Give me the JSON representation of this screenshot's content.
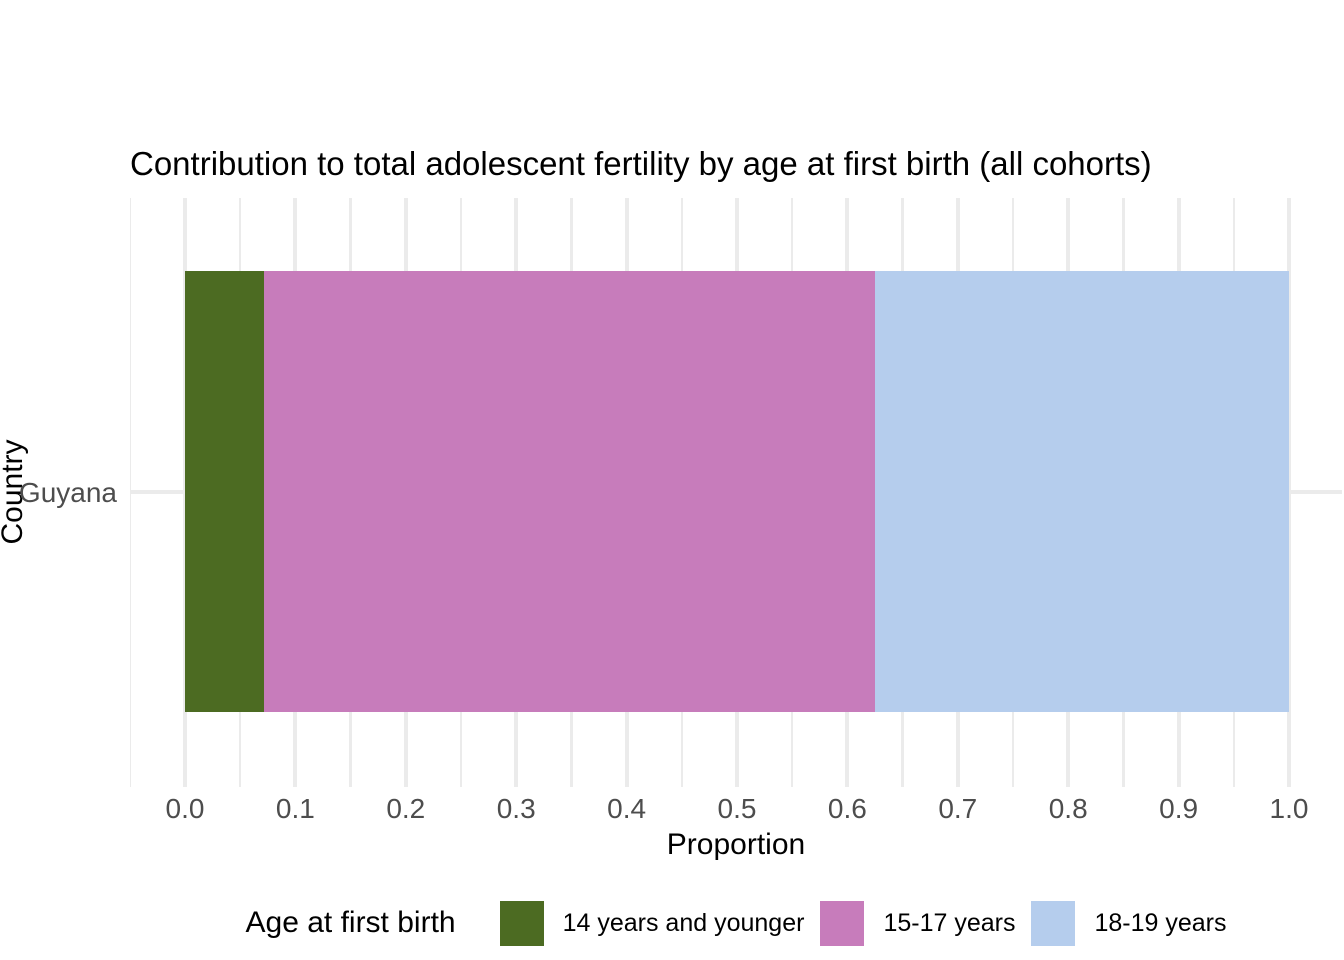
{
  "title": "Contribution to total adolescent fertility by age at first birth (all cohorts)",
  "axes": {
    "x_title": "Proportion",
    "y_title": "Country",
    "y_categories": [
      "Guyana"
    ]
  },
  "legend": {
    "title": "Age at first birth",
    "items": [
      {
        "label": "14 years and younger",
        "color": "#4C6B22"
      },
      {
        "label": "15-17 years",
        "color": "#C77CBB"
      },
      {
        "label": "18-19 years",
        "color": "#B5CDED"
      }
    ]
  },
  "chart_data": {
    "type": "bar",
    "orientation": "horizontal",
    "stacked": true,
    "title": "Contribution to total adolescent fertility by age at first birth (all cohorts)",
    "xlabel": "Proportion",
    "ylabel": "Country",
    "categories": [
      "Guyana"
    ],
    "series": [
      {
        "name": "14 years and younger",
        "color": "#4C6B22",
        "values": [
          0.072
        ]
      },
      {
        "name": "15-17 years",
        "color": "#C77CBB",
        "values": [
          0.553
        ]
      },
      {
        "name": "18-19 years",
        "color": "#B5CDED",
        "values": [
          0.375
        ]
      }
    ],
    "xlim": [
      0,
      1
    ],
    "x_ticks": [
      0.0,
      0.1,
      0.2,
      0.3,
      0.4,
      0.5,
      0.6,
      0.7,
      0.8,
      0.9,
      1.0
    ],
    "x_tick_labels": [
      "0.0",
      "0.1",
      "0.2",
      "0.3",
      "0.4",
      "0.5",
      "0.6",
      "0.7",
      "0.8",
      "0.9",
      "1.0"
    ],
    "x_minor_ticks": [
      -0.05,
      0.05,
      0.15,
      0.25,
      0.35,
      0.45,
      0.55,
      0.65,
      0.75,
      0.85,
      0.95,
      1.05
    ],
    "grid": "major+minor vertical, major horizontal",
    "grid_color": "#EBEBEB",
    "background": "#ffffff",
    "tick_label_color": "#4D4D4D",
    "legend_position": "bottom"
  }
}
